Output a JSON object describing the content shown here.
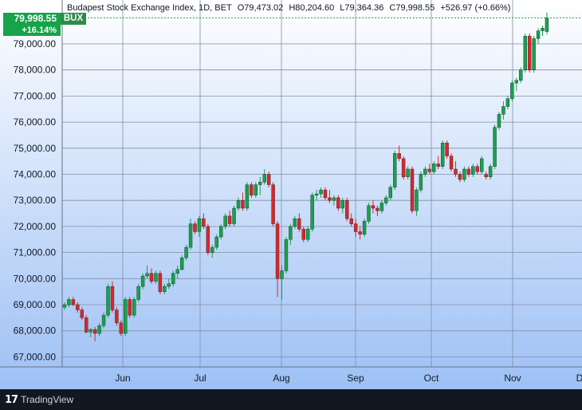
{
  "header": {
    "title": "Budapest Stock Exchange Index, 1D, BET",
    "open": "O79,473.02",
    "high": "H80,204.60",
    "low": "L79,364.36",
    "close": "C79,998.55",
    "change": "+526.97 (+0.66%)"
  },
  "badges": {
    "price": "79,998.55",
    "percent": "+16.14%",
    "ticker": "BUX"
  },
  "footer": {
    "logo": "17",
    "brand": "TradingView"
  },
  "colors": {
    "up": "#16a34a",
    "down": "#dc2626",
    "badge": "#16a34a",
    "footer": "#131722",
    "grid": "#808fa3",
    "gradient_top": "#ffffff",
    "gradient_bottom": "#9dc0f5"
  },
  "chart_data": {
    "type": "candlestick",
    "y_ticks": [
      67000,
      68000,
      69000,
      70000,
      71000,
      72000,
      73000,
      74000,
      75000,
      76000,
      77000,
      78000,
      79000
    ],
    "y_tick_labels": [
      "67,000.00",
      "68,000.00",
      "69,000.00",
      "70,000.00",
      "71,000.00",
      "72,000.00",
      "73,000.00",
      "74,000.00",
      "75,000.00",
      "76,000.00",
      "77,000.00",
      "78,000.00",
      "79,000.00"
    ],
    "x_month_labels": [
      "Jun",
      "Jul",
      "Aug",
      "Sep",
      "Oct",
      "Nov",
      "D"
    ],
    "last_price": 79998.55,
    "grid": true,
    "series": [
      {
        "name": "BUX",
        "ohlc": [
          [
            68900,
            69100,
            68800,
            69000
          ],
          [
            69000,
            69300,
            68900,
            69200
          ],
          [
            69200,
            69300,
            68950,
            69000
          ],
          [
            69000,
            69100,
            68700,
            68800
          ],
          [
            68800,
            68900,
            68400,
            68500
          ],
          [
            68500,
            68600,
            67900,
            67950
          ],
          [
            67950,
            68100,
            67750,
            68050
          ],
          [
            68050,
            68150,
            67600,
            67900
          ],
          [
            67900,
            68300,
            67800,
            68200
          ],
          [
            68200,
            68700,
            68100,
            68600
          ],
          [
            68600,
            69800,
            68500,
            69700
          ],
          [
            69700,
            69900,
            68700,
            68800
          ],
          [
            68800,
            68900,
            68200,
            68300
          ],
          [
            68300,
            68400,
            67800,
            67900
          ],
          [
            67900,
            69300,
            67800,
            69200
          ],
          [
            69200,
            69300,
            68500,
            68600
          ],
          [
            68600,
            69300,
            68500,
            69200
          ],
          [
            69200,
            69800,
            69100,
            69700
          ],
          [
            69700,
            70200,
            69600,
            70100
          ],
          [
            70100,
            70500,
            70000,
            70200
          ],
          [
            70200,
            70400,
            69800,
            69900
          ],
          [
            69900,
            70300,
            69800,
            70200
          ],
          [
            70200,
            70300,
            69400,
            69500
          ],
          [
            69500,
            69800,
            69400,
            69700
          ],
          [
            69700,
            70000,
            69600,
            69800
          ],
          [
            69800,
            70300,
            69700,
            70200
          ],
          [
            70200,
            70500,
            70000,
            70350
          ],
          [
            70350,
            70900,
            70300,
            70800
          ],
          [
            70800,
            71300,
            70700,
            71200
          ],
          [
            71200,
            72300,
            71100,
            72100
          ],
          [
            72100,
            72200,
            71700,
            71800
          ],
          [
            71800,
            72400,
            71600,
            72300
          ],
          [
            72300,
            72500,
            71900,
            72000
          ],
          [
            72000,
            72100,
            70900,
            71000
          ],
          [
            71000,
            71300,
            70800,
            71200
          ],
          [
            71200,
            71700,
            71100,
            71600
          ],
          [
            71600,
            72100,
            71500,
            72000
          ],
          [
            72000,
            72500,
            71900,
            72400
          ],
          [
            72400,
            72600,
            72000,
            72100
          ],
          [
            72100,
            72800,
            72000,
            72700
          ],
          [
            72700,
            73100,
            72600,
            73000
          ],
          [
            73000,
            73300,
            72600,
            72700
          ],
          [
            72700,
            73700,
            72600,
            73600
          ],
          [
            73600,
            73700,
            73100,
            73200
          ],
          [
            73200,
            73700,
            73100,
            73600
          ],
          [
            73600,
            73900,
            73200,
            73700
          ],
          [
            73700,
            74200,
            73600,
            74000
          ],
          [
            74000,
            74100,
            73500,
            73600
          ],
          [
            73600,
            73700,
            72000,
            72100
          ],
          [
            72100,
            72200,
            69300,
            70000
          ],
          [
            70000,
            70500,
            69200,
            70300
          ],
          [
            70300,
            71600,
            70200,
            71500
          ],
          [
            71500,
            72100,
            71300,
            72000
          ],
          [
            72000,
            72400,
            71900,
            72300
          ],
          [
            72300,
            72500,
            71800,
            71900
          ],
          [
            71900,
            72000,
            71400,
            71500
          ],
          [
            71500,
            72000,
            71400,
            71900
          ],
          [
            71900,
            73300,
            71800,
            73200
          ],
          [
            73200,
            73400,
            73000,
            73250
          ],
          [
            73250,
            73500,
            73100,
            73400
          ],
          [
            73400,
            73500,
            73000,
            73100
          ],
          [
            73100,
            73400,
            72900,
            73000
          ],
          [
            73000,
            73200,
            72800,
            73100
          ],
          [
            73100,
            73200,
            72600,
            72700
          ],
          [
            72700,
            73100,
            72500,
            73000
          ],
          [
            73000,
            73100,
            72200,
            72300
          ],
          [
            72300,
            72500,
            72000,
            72100
          ],
          [
            72100,
            72300,
            71600,
            71800
          ],
          [
            71800,
            72000,
            71500,
            71700
          ],
          [
            71700,
            72300,
            71600,
            72200
          ],
          [
            72200,
            72900,
            72100,
            72800
          ],
          [
            72800,
            73000,
            72500,
            72700
          ],
          [
            72700,
            72800,
            72400,
            72600
          ],
          [
            72600,
            73000,
            72500,
            72900
          ],
          [
            72900,
            73200,
            72800,
            73100
          ],
          [
            73100,
            73600,
            73000,
            73500
          ],
          [
            73500,
            74900,
            73400,
            74800
          ],
          [
            74800,
            75100,
            74500,
            74600
          ],
          [
            74600,
            74700,
            73800,
            73900
          ],
          [
            73900,
            74300,
            73800,
            74200
          ],
          [
            74200,
            74300,
            72500,
            72600
          ],
          [
            72600,
            73500,
            72400,
            73400
          ],
          [
            73400,
            74100,
            73300,
            74000
          ],
          [
            74000,
            74300,
            73900,
            74200
          ],
          [
            74200,
            74400,
            74000,
            74100
          ],
          [
            74100,
            74500,
            74000,
            74400
          ],
          [
            74400,
            74700,
            74200,
            74300
          ],
          [
            74300,
            75300,
            74200,
            75200
          ],
          [
            75200,
            75300,
            74600,
            74700
          ],
          [
            74700,
            74800,
            74100,
            74200
          ],
          [
            74200,
            74500,
            73900,
            74000
          ],
          [
            74000,
            74100,
            73700,
            73800
          ],
          [
            73800,
            74300,
            73700,
            74200
          ],
          [
            74200,
            74300,
            73900,
            74000
          ],
          [
            74000,
            74400,
            73900,
            74300
          ],
          [
            74300,
            74400,
            74000,
            74100
          ],
          [
            74100,
            74700,
            74000,
            74600
          ],
          [
            74000,
            74100,
            73800,
            73900
          ],
          [
            73900,
            74400,
            73800,
            74300
          ],
          [
            74300,
            75900,
            74200,
            75800
          ],
          [
            75800,
            76400,
            75700,
            76300
          ],
          [
            76300,
            76800,
            76100,
            76600
          ],
          [
            76600,
            77000,
            76500,
            76900
          ],
          [
            76900,
            77600,
            76800,
            77500
          ],
          [
            77500,
            77700,
            77200,
            77600
          ],
          [
            77600,
            78100,
            77500,
            78000
          ],
          [
            78000,
            79400,
            77900,
            79300
          ],
          [
            79300,
            79400,
            77900,
            78000
          ],
          [
            78000,
            79300,
            77900,
            79200
          ],
          [
            79200,
            79600,
            79000,
            79500
          ],
          [
            79500,
            79700,
            79300,
            79600
          ],
          [
            79473.02,
            80204.6,
            79364.36,
            79998.55
          ]
        ]
      }
    ]
  }
}
